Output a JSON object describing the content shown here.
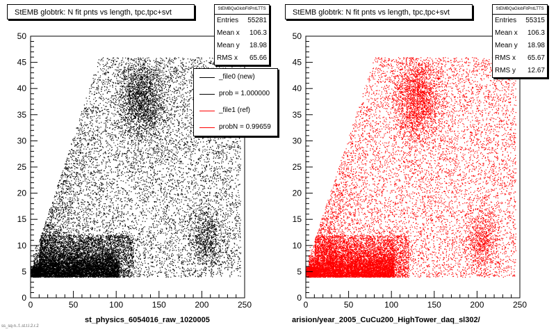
{
  "left_pad": {
    "title": "StEMB globtrk: N fit pnts vs length, tpc,tpc+svt",
    "stats": {
      "header": "StEMBQaGlobFitPntLTTS",
      "rows": [
        {
          "label": "Entries",
          "value": "55281"
        },
        {
          "label": "Mean x",
          "value": "106.3"
        },
        {
          "label": "Mean y",
          "value": "18.98"
        },
        {
          "label": "RMS x",
          "value": "65.66"
        }
      ]
    },
    "x_title": "st_physics_6054016_raw_1020005",
    "legend": [
      {
        "label": "_file0 (new)",
        "color": "#000000"
      },
      {
        "label": "prob = 1.000000",
        "color": "#000000"
      },
      {
        "label": "_file1 (ref)",
        "color": "#ff0000"
      },
      {
        "label": "probN = 0.99659",
        "color": "#ff0000"
      }
    ]
  },
  "right_pad": {
    "title": "StEMB globtrk: N fit pnts vs length, tpc,tpc+svt",
    "stats": {
      "header": "StEMBQaGlobFitPntLTTS",
      "rows": [
        {
          "label": "Entries",
          "value": "55315"
        },
        {
          "label": "Mean x",
          "value": "106.3"
        },
        {
          "label": "Mean y",
          "value": "18.98"
        },
        {
          "label": "RMS x",
          "value": "65.67"
        },
        {
          "label": "RMS y",
          "value": "12.67"
        }
      ]
    },
    "x_title": "arision/year_2005_CuCu200_HighTower_daq_sl302/"
  },
  "corner_note": "ss_sq-n..f..st.t.l.2.r.2",
  "chart_data": [
    {
      "type": "scatter",
      "title": "StEMB globtrk: N fit pnts vs length, tpc,tpc+svt",
      "xlabel": "st_physics_6054016_raw_1020005",
      "ylabel": "",
      "xlim": [
        0,
        250
      ],
      "ylim": [
        0,
        50
      ],
      "xticks": [
        0,
        50,
        100,
        150,
        200,
        250
      ],
      "yticks": [
        0,
        5,
        10,
        15,
        20,
        25,
        30,
        35,
        40,
        45,
        50
      ],
      "color": "#000000",
      "entries": 55281,
      "mean_x": 106.3,
      "mean_y": 18.98,
      "rms_x": 65.66
    },
    {
      "type": "scatter",
      "title": "StEMB globtrk: N fit pnts vs length, tpc,tpc+svt",
      "xlabel": "arision/year_2005_CuCu200_HighTower_daq_sl302/",
      "ylabel": "",
      "xlim": [
        0,
        250
      ],
      "ylim": [
        0,
        50
      ],
      "xticks": [
        0,
        50,
        100,
        150,
        200,
        250
      ],
      "yticks": [
        0,
        5,
        10,
        15,
        20,
        25,
        30,
        35,
        40,
        45,
        50
      ],
      "color": "#ff0000",
      "entries": 55315,
      "mean_x": 106.3,
      "mean_y": 18.98,
      "rms_x": 65.67,
      "rms_y": 12.67
    }
  ],
  "colors": {
    "new": "#000000",
    "ref": "#ff0000"
  }
}
